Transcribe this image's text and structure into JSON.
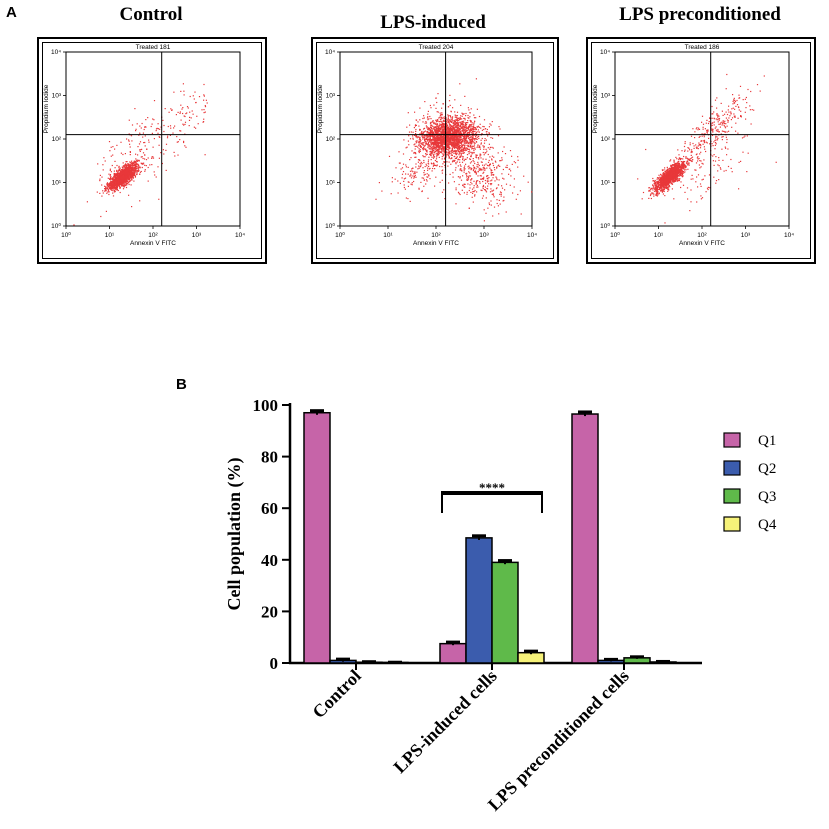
{
  "panel_a": {
    "letter": "A",
    "plots": [
      {
        "title": "Control",
        "plot_label": "Treated 181",
        "xlabel": "Annexin V FITC",
        "ylabel": "Propidium Iodide",
        "x_ticks": [
          "10⁰",
          "10¹",
          "10²",
          "10³",
          "10⁴"
        ],
        "y_ticks": [
          "10⁰",
          "10¹",
          "10²",
          "10³",
          "10⁴"
        ],
        "dot_color": "#e8383a",
        "gate_x_log": 2.2,
        "gate_y_log": 2.1
      },
      {
        "title": "LPS-induced",
        "plot_label": "Treated 204",
        "xlabel": "Annexin V FITC",
        "ylabel": "Propidium Iodide",
        "x_ticks": [
          "10⁰",
          "10¹",
          "10²",
          "10³",
          "10⁴"
        ],
        "y_ticks": [
          "10⁰",
          "10¹",
          "10²",
          "10³",
          "10⁴"
        ],
        "dot_color": "#e8383a",
        "gate_x_log": 2.2,
        "gate_y_log": 2.1
      },
      {
        "title": "LPS preconditioned",
        "plot_label": "Treated 186",
        "xlabel": "Annexin V FITC",
        "ylabel": "Propidium Iodide",
        "x_ticks": [
          "10⁰",
          "10¹",
          "10²",
          "10³",
          "10⁴"
        ],
        "y_ticks": [
          "10⁰",
          "10¹",
          "10²",
          "10³",
          "10⁴"
        ],
        "dot_color": "#e8383a",
        "gate_x_log": 2.2,
        "gate_y_log": 2.1
      }
    ]
  },
  "panel_b": {
    "letter": "B"
  },
  "chart_data": {
    "type": "bar",
    "title": "",
    "xlabel": "",
    "ylabel": "Cell population (%)",
    "ylim": [
      0,
      100
    ],
    "y_ticks": [
      0,
      20,
      40,
      60,
      80,
      100
    ],
    "categories": [
      "Control",
      "LPS-induced cells",
      "LPS preconditioned cells"
    ],
    "series": [
      {
        "name": "Q1",
        "color": "#c664a8",
        "values": [
          97.0,
          7.5,
          96.5
        ],
        "errors": [
          0.8,
          0.6,
          0.8
        ]
      },
      {
        "name": "Q2",
        "color": "#3b5cad",
        "values": [
          1.0,
          48.5,
          1.0
        ],
        "errors": [
          0.5,
          0.8,
          0.4
        ]
      },
      {
        "name": "Q3",
        "color": "#5fba4a",
        "values": [
          0.3,
          39.0,
          2.0
        ],
        "errors": [
          0.2,
          0.7,
          0.4
        ]
      },
      {
        "name": "Q4",
        "color": "#f6f279",
        "values": [
          0.2,
          4.0,
          0.4
        ],
        "errors": [
          0.1,
          0.6,
          0.2
        ]
      }
    ],
    "annotation": {
      "text": "****",
      "from_category": 1
    },
    "legend_position": "right"
  }
}
